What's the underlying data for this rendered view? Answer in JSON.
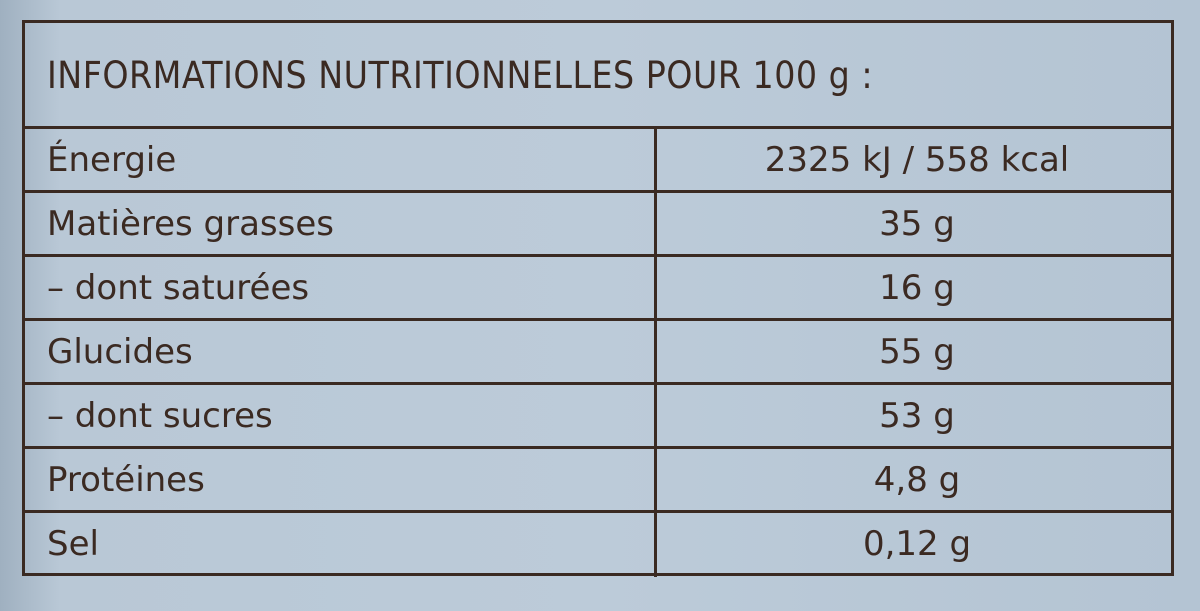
{
  "header": {
    "title": "INFORMATIONS NUTRITIONNELLES POUR 100 g :"
  },
  "table": {
    "rows": [
      [
        "Énergie",
        "2325 kJ / 558 kcal"
      ],
      [
        "Matières grasses",
        "35 g"
      ],
      [
        "– dont saturées",
        "16 g"
      ],
      [
        "Glucides",
        "55 g"
      ],
      [
        "– dont sucres",
        "53 g"
      ],
      [
        "Protéines",
        "4,8 g"
      ],
      [
        "Sel",
        "0,12 g"
      ]
    ]
  }
}
